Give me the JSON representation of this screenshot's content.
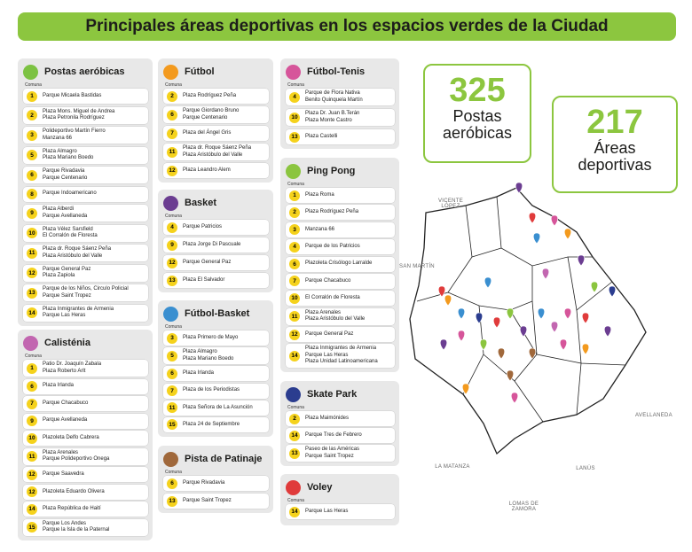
{
  "title": "Principales áreas deportivas en los espacios verdes de la Ciudad",
  "stats": [
    {
      "value": 325,
      "label": "Postas aeróbicas"
    },
    {
      "value": 217,
      "label": "Áreas deportivas"
    }
  ],
  "sections": [
    {
      "title": "Postas aeróbicas",
      "comuna_label": "Comuna",
      "rows": [
        {
          "comuna": 1,
          "places": [
            "Parque Micaela Bastidas"
          ]
        },
        {
          "comuna": 2,
          "places": [
            "Plaza Mons. Miguel de Andrea",
            "Plaza Petronila Rodríguez"
          ]
        },
        {
          "comuna": 3,
          "places": [
            "Polideportivo Martín Fierro",
            "Manzana 66"
          ]
        },
        {
          "comuna": 5,
          "places": [
            "Plaza Almagro",
            "Plaza Mariano Boedo"
          ]
        },
        {
          "comuna": 6,
          "places": [
            "Parque Rivadavia",
            "Parque Centenario"
          ]
        },
        {
          "comuna": 8,
          "places": [
            "Parque Indoamericano"
          ]
        },
        {
          "comuna": 9,
          "places": [
            "Plaza Alberdi",
            "Parque Avellaneda"
          ]
        },
        {
          "comuna": 10,
          "places": [
            "Plaza Vélez Sarsfield",
            "El Corralón de Floresta"
          ]
        },
        {
          "comuna": 11,
          "places": [
            "Plaza dr. Roque Sáenz Peña",
            "Plaza Aristóbulo del Valle"
          ]
        },
        {
          "comuna": 12,
          "places": [
            "Parque General Paz",
            "Plaza Zapiola"
          ]
        },
        {
          "comuna": 13,
          "places": [
            "Parque de los Niños, Circulo Policial",
            "Parque Saint Tropez"
          ]
        },
        {
          "comuna": 14,
          "places": [
            "Plaza Inmigrantes de Armenia",
            "Parque Las Heras"
          ]
        }
      ]
    },
    {
      "title": "Calisténia",
      "comuna_label": "Comuna",
      "rows": [
        {
          "comuna": 1,
          "places": [
            "Patio Dr. Joaquín Zabala",
            "Plaza Roberto Arlt"
          ]
        },
        {
          "comuna": 6,
          "places": [
            "Plaza Irlanda"
          ]
        },
        {
          "comuna": 7,
          "places": [
            "Parque Chacabuco"
          ]
        },
        {
          "comuna": 9,
          "places": [
            "Parque Avellaneda"
          ]
        },
        {
          "comuna": 10,
          "places": [
            "Plazoleta Delfo Cabrera"
          ]
        },
        {
          "comuna": 11,
          "places": [
            "Plaza Arenales",
            "Parque Polideportivo Onega"
          ]
        },
        {
          "comuna": 12,
          "places": [
            "Parque Saavedra"
          ]
        },
        {
          "comuna": 12,
          "places": [
            "Plazoleta Eduardo Olivera"
          ]
        },
        {
          "comuna": 14,
          "places": [
            "Plaza República de Haití"
          ]
        },
        {
          "comuna": 15,
          "places": [
            "Parque Los Andes",
            "Parque la Isla de la Paternal"
          ]
        }
      ]
    },
    {
      "title": "Fútbol",
      "comuna_label": "Comuna",
      "rows": [
        {
          "comuna": 2,
          "places": [
            "Plaza Rodríguez Peña"
          ]
        },
        {
          "comuna": 6,
          "places": [
            "Parque Giordano Bruno",
            "Parque Centenario"
          ]
        },
        {
          "comuna": 7,
          "places": [
            "Plaza del Ángel Gris"
          ]
        },
        {
          "comuna": 11,
          "places": [
            "Plaza dr. Roque Sáenz Peña",
            "Plaza Aristóbulo del Valle"
          ]
        },
        {
          "comuna": 12,
          "places": [
            "Plaza Leandro Alem"
          ]
        }
      ]
    },
    {
      "title": "Basket",
      "comuna_label": "Comuna",
      "rows": [
        {
          "comuna": 4,
          "places": [
            "Parque Patricios"
          ]
        },
        {
          "comuna": 9,
          "places": [
            "Plaza Jorge Di Pascuale"
          ]
        },
        {
          "comuna": 12,
          "places": [
            "Parque General Paz"
          ]
        },
        {
          "comuna": 13,
          "places": [
            "Plaza El Salvador"
          ]
        }
      ]
    },
    {
      "title": "Fútbol-Basket",
      "comuna_label": "Comuna",
      "rows": [
        {
          "comuna": 3,
          "places": [
            "Plaza Primero de Mayo"
          ]
        },
        {
          "comuna": 5,
          "places": [
            "Plaza Almagro",
            "Plaza Mariano Boedo"
          ]
        },
        {
          "comuna": 6,
          "places": [
            "Plaza Irlanda"
          ]
        },
        {
          "comuna": 7,
          "places": [
            "Plaza de los Periodistas"
          ]
        },
        {
          "comuna": 11,
          "places": [
            "Plaza Señora de La Asunción"
          ]
        },
        {
          "comuna": 15,
          "places": [
            "Plaza 24 de Septiembre"
          ]
        }
      ]
    },
    {
      "title": "Pista de Patinaje",
      "comuna_label": "Comuna",
      "rows": [
        {
          "comuna": 6,
          "places": [
            "Parque Rivadavia"
          ]
        },
        {
          "comuna": 13,
          "places": [
            "Parque Saint Tropez"
          ]
        }
      ]
    },
    {
      "title": "Fútbol-Tenis",
      "comuna_label": "Comuna",
      "rows": [
        {
          "comuna": 4,
          "places": [
            "Parque de Flora Nativa",
            "Benito Quinquela Martín"
          ]
        },
        {
          "comuna": 10,
          "places": [
            "Plaza Dr. Juan B.Terán",
            "Plaza Monte Castro"
          ]
        },
        {
          "comuna": 13,
          "places": [
            "Plaza Castelli"
          ]
        }
      ]
    },
    {
      "title": "Ping Pong",
      "comuna_label": "Comuna",
      "rows": [
        {
          "comuna": 1,
          "places": [
            "Plaza Roma"
          ]
        },
        {
          "comuna": 2,
          "places": [
            "Plaza Rodríguez Peña"
          ]
        },
        {
          "comuna": 3,
          "places": [
            "Manzana 66"
          ]
        },
        {
          "comuna": 4,
          "places": [
            "Parque de los Patricios"
          ]
        },
        {
          "comuna": 6,
          "places": [
            "Plazoleta Crisólogo Larralde"
          ]
        },
        {
          "comuna": 7,
          "places": [
            "Parque Chacabuco"
          ]
        },
        {
          "comuna": 10,
          "places": [
            "El Corralón de Floresta"
          ]
        },
        {
          "comuna": 11,
          "places": [
            "Plaza Arenales",
            "Plaza Aristóbulo del Valle"
          ]
        },
        {
          "comuna": 12,
          "places": [
            "Parque General Paz"
          ]
        },
        {
          "comuna": 14,
          "places": [
            "Plaza Inmigrantes de Armenia",
            "Parque Las Heras",
            "Plaza Unidad Latinoamericana"
          ]
        }
      ]
    },
    {
      "title": "Skate Park",
      "comuna_label": "Comuna",
      "rows": [
        {
          "comuna": 2,
          "places": [
            "Plaza Maimónides"
          ]
        },
        {
          "comuna": 14,
          "places": [
            "Parque Tres de Febrero"
          ]
        },
        {
          "comuna": 13,
          "places": [
            "Paseo de las Américas",
            "Parque Saint Tropez"
          ]
        }
      ]
    },
    {
      "title": "Voley",
      "comuna_label": "Comuna",
      "rows": [
        {
          "comuna": 14,
          "places": [
            "Parque Las Heras"
          ]
        }
      ]
    }
  ],
  "map": {
    "labels": [
      "VICENTE LÓPEZ",
      "SAN MARTÍN",
      "AVELLANEDA",
      "LA MATANZA",
      "LANÚS",
      "LOMAS DE ZAMORA"
    ]
  }
}
